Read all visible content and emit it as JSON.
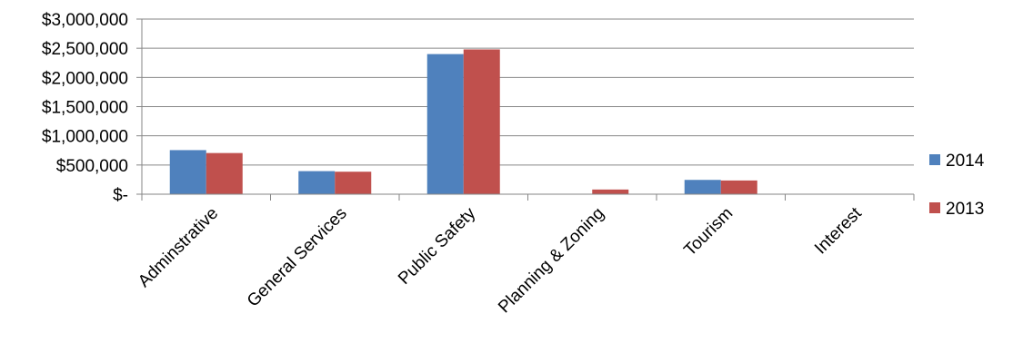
{
  "chart_data": {
    "type": "bar",
    "categories": [
      "Adminstrative",
      "General Services",
      "Public Safety",
      "Planning & Zoning",
      "Tourism",
      "Interest"
    ],
    "series": [
      {
        "name": "2014",
        "color": "#4F81BD",
        "values": [
          755000,
          395000,
          2400000,
          0,
          245000,
          0
        ]
      },
      {
        "name": "2013",
        "color": "#C0504D",
        "values": [
          705000,
          385000,
          2480000,
          80000,
          235000,
          0
        ]
      }
    ],
    "ylim": [
      0,
      3000000
    ],
    "yticks": [
      0,
      500000,
      1000000,
      1500000,
      2000000,
      2500000,
      3000000
    ],
    "ytick_labels": [
      "$-",
      "$500,000",
      "$1,000,000",
      "$1,500,000",
      "$2,000,000",
      "$2,500,000",
      "$3,000,000"
    ],
    "grid": true,
    "legend_position": "right",
    "title": "",
    "xlabel": "",
    "ylabel": ""
  }
}
